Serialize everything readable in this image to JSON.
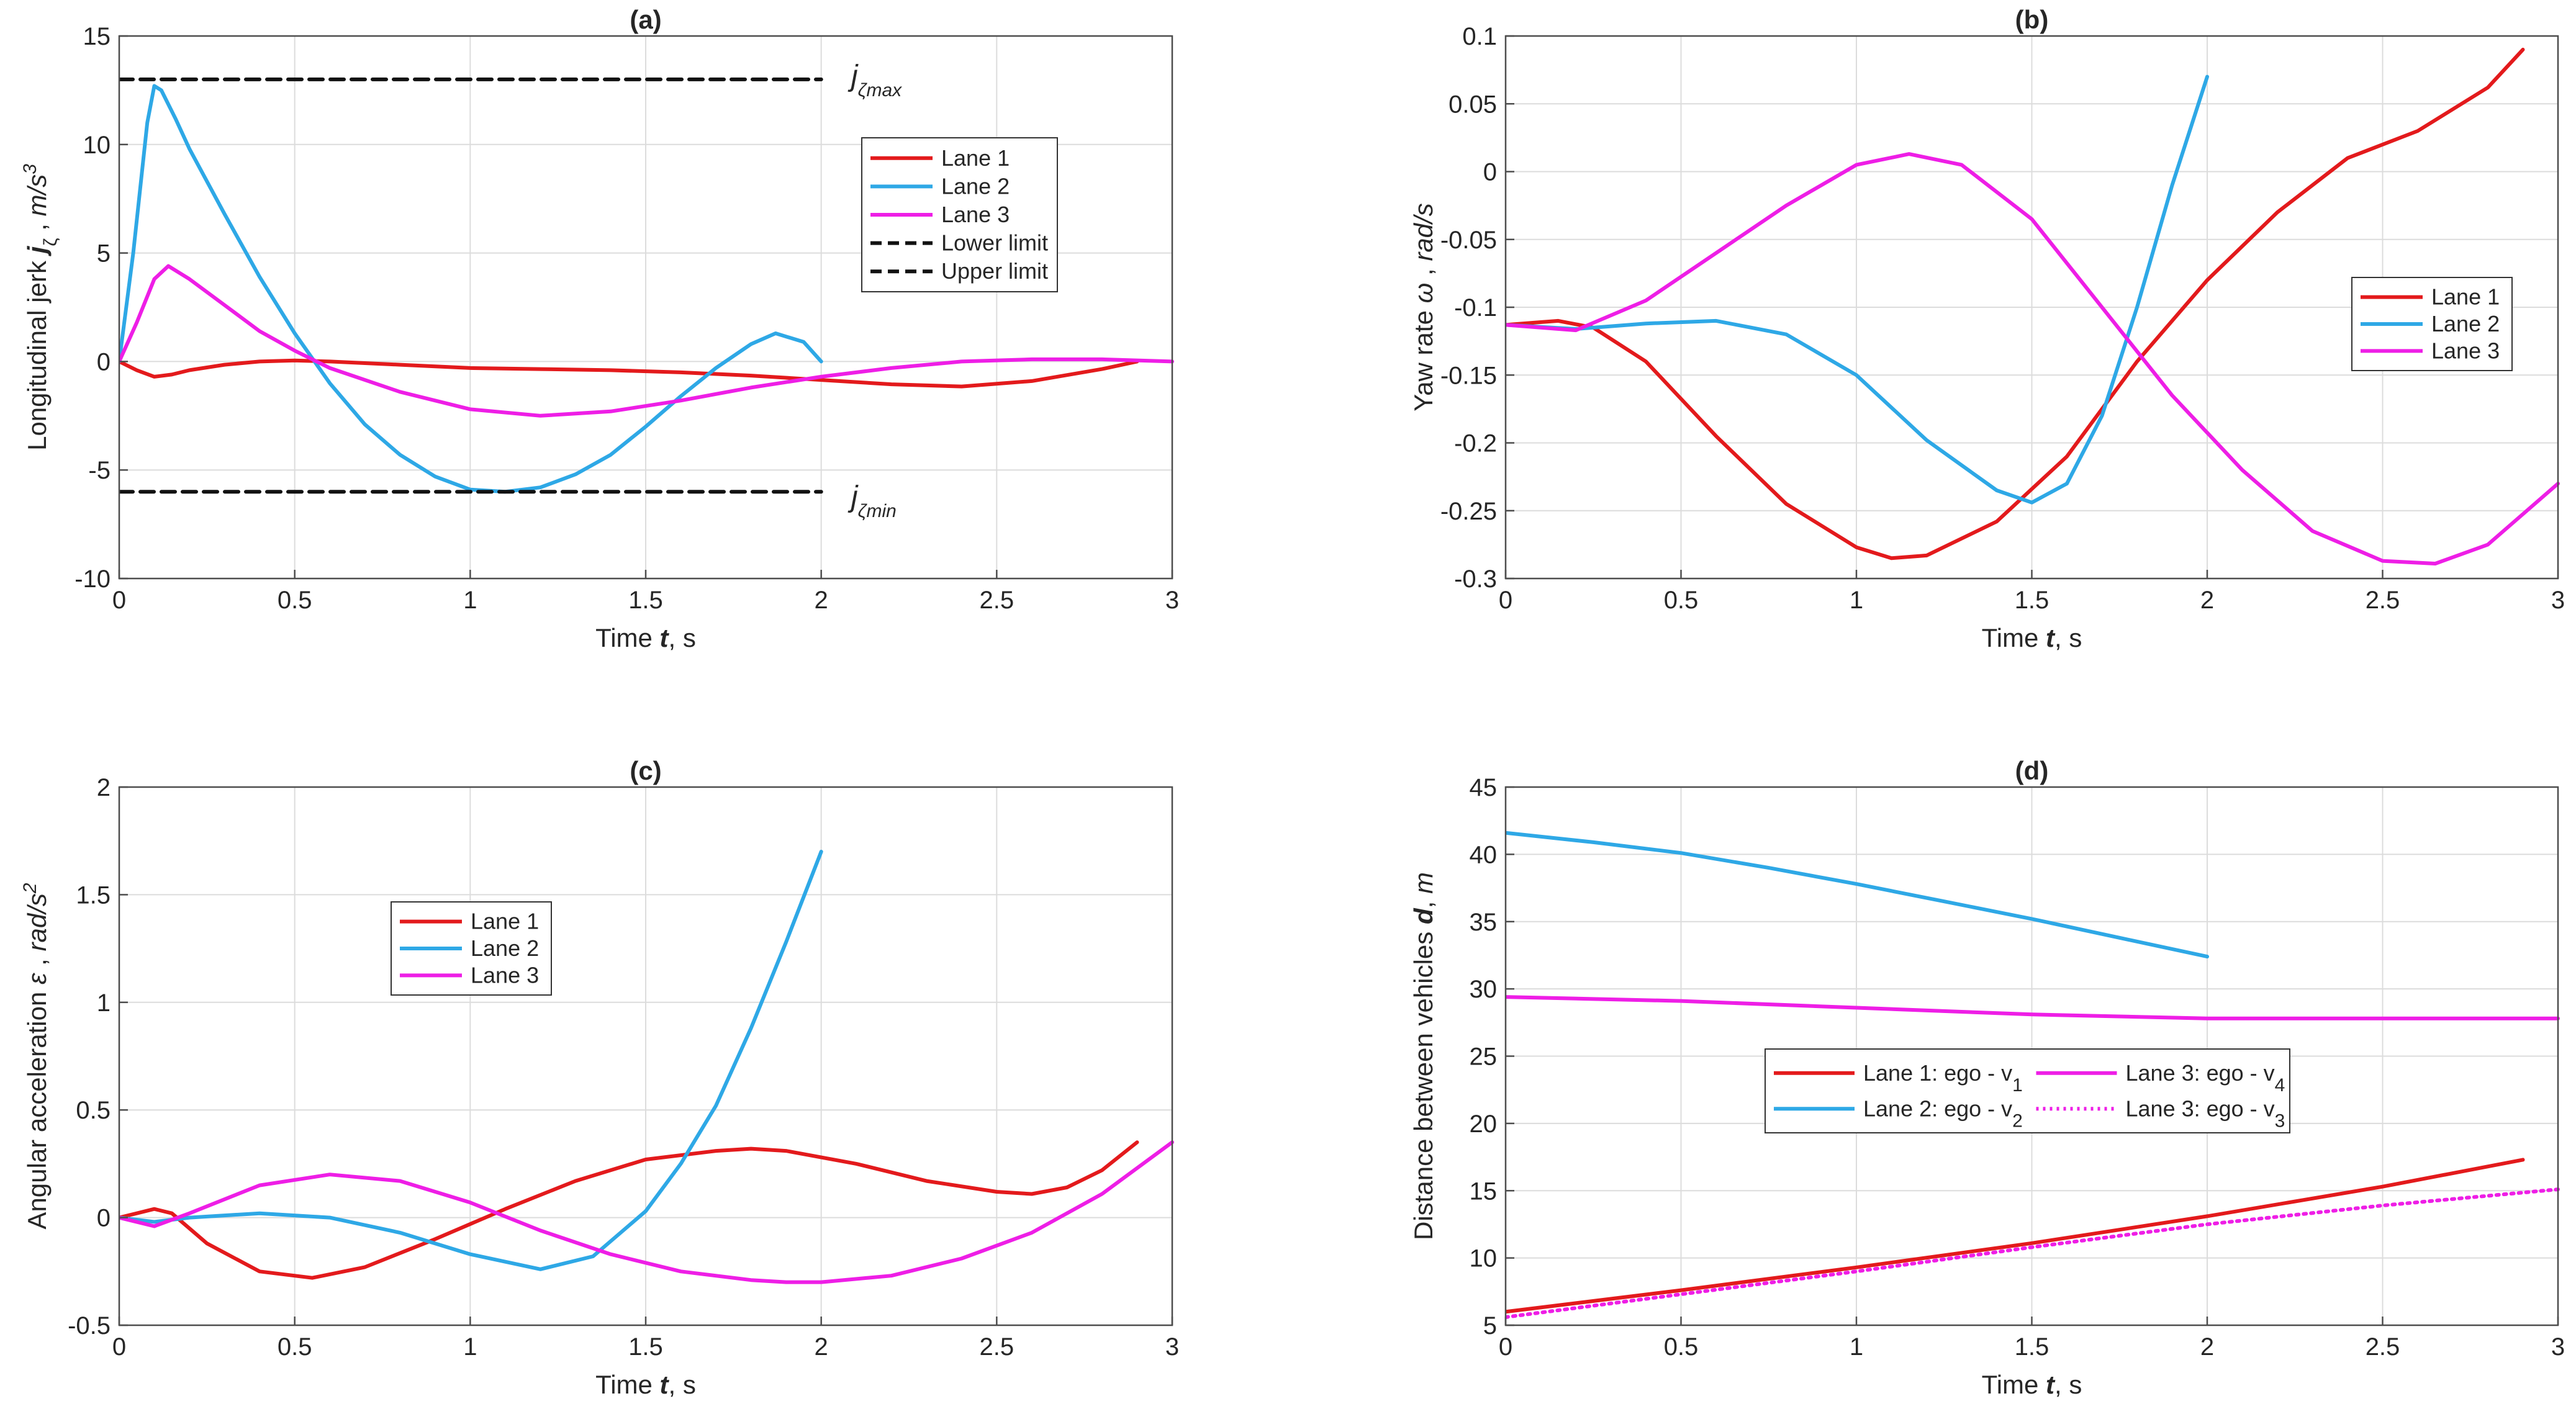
{
  "figure": {
    "layout": "2x2 grid"
  },
  "colors": {
    "lane1": "#e31a1c",
    "lane2": "#2ea8e6",
    "lane3": "#ee1ee6",
    "limit": "#111111"
  },
  "chart_data": [
    {
      "id": "a",
      "type": "line",
      "title": "(a)",
      "xlabel": "Time t, s",
      "ylabel": "Longitudinal jerk jζ , m/s³",
      "xlim": [
        0,
        3
      ],
      "ylim": [
        -10,
        15
      ],
      "xticks": [
        0,
        0.5,
        1,
        1.5,
        2,
        2.5,
        3
      ],
      "yticks": [
        -10,
        -5,
        0,
        5,
        10,
        15
      ],
      "grid": true,
      "legend_position": "right",
      "annotations": [
        {
          "text": "jζmax",
          "x": 2.05,
          "y": 13
        },
        {
          "text": "jζmin",
          "x": 2.05,
          "y": -6
        }
      ],
      "series": [
        {
          "name": "Lane 1",
          "color": "#e31a1c",
          "style": "solid",
          "x": [
            0,
            0.05,
            0.1,
            0.15,
            0.2,
            0.3,
            0.4,
            0.5,
            0.6,
            0.8,
            1.0,
            1.2,
            1.4,
            1.6,
            1.8,
            2.0,
            2.2,
            2.4,
            2.6,
            2.8,
            2.9
          ],
          "y": [
            0,
            -0.4,
            -0.7,
            -0.6,
            -0.4,
            -0.15,
            0,
            0.05,
            0,
            -0.15,
            -0.3,
            -0.35,
            -0.4,
            -0.5,
            -0.65,
            -0.85,
            -1.05,
            -1.15,
            -0.9,
            -0.35,
            0
          ]
        },
        {
          "name": "Lane 2",
          "color": "#2ea8e6",
          "style": "solid",
          "x": [
            0,
            0.04,
            0.08,
            0.1,
            0.12,
            0.16,
            0.2,
            0.3,
            0.4,
            0.5,
            0.6,
            0.7,
            0.8,
            0.9,
            1.0,
            1.1,
            1.2,
            1.3,
            1.4,
            1.5,
            1.6,
            1.7,
            1.8,
            1.87,
            1.95,
            2.0
          ],
          "y": [
            0,
            5,
            11,
            12.7,
            12.5,
            11.2,
            9.8,
            6.8,
            3.9,
            1.3,
            -1.0,
            -2.9,
            -4.3,
            -5.3,
            -5.9,
            -6.0,
            -5.8,
            -5.2,
            -4.3,
            -3.0,
            -1.6,
            -0.3,
            0.8,
            1.3,
            0.9,
            0
          ]
        },
        {
          "name": "Lane 3",
          "color": "#ee1ee6",
          "style": "solid",
          "x": [
            0,
            0.05,
            0.1,
            0.14,
            0.2,
            0.3,
            0.4,
            0.5,
            0.6,
            0.8,
            1.0,
            1.2,
            1.4,
            1.6,
            1.8,
            2.0,
            2.2,
            2.4,
            2.6,
            2.8,
            3.0
          ],
          "y": [
            0,
            1.8,
            3.8,
            4.4,
            3.8,
            2.6,
            1.4,
            0.5,
            -0.3,
            -1.4,
            -2.2,
            -2.5,
            -2.3,
            -1.8,
            -1.2,
            -0.7,
            -0.3,
            0,
            0.1,
            0.1,
            0
          ]
        },
        {
          "name": "Lower limit",
          "color": "#111111",
          "style": "dashed",
          "x": [
            0,
            2
          ],
          "y": [
            -6,
            -6
          ]
        },
        {
          "name": "Upper limit",
          "color": "#111111",
          "style": "dashed",
          "x": [
            0,
            2
          ],
          "y": [
            13,
            13
          ]
        }
      ]
    },
    {
      "id": "b",
      "type": "line",
      "title": "(b)",
      "xlabel": "Time t, s",
      "ylabel": "Yaw rate ω , rad/s",
      "xlim": [
        0,
        3
      ],
      "ylim": [
        -0.3,
        0.1
      ],
      "xticks": [
        0,
        0.5,
        1,
        1.5,
        2,
        2.5,
        3
      ],
      "yticks": [
        -0.3,
        -0.25,
        -0.2,
        -0.15,
        -0.1,
        -0.05,
        0,
        0.05,
        0.1
      ],
      "grid": true,
      "legend_position": "right",
      "annotations": [],
      "series": [
        {
          "name": "Lane 1",
          "color": "#e31a1c",
          "style": "solid",
          "x": [
            0,
            0.1,
            0.15,
            0.25,
            0.4,
            0.6,
            0.8,
            1.0,
            1.1,
            1.2,
            1.4,
            1.6,
            1.8,
            2.0,
            2.2,
            2.4,
            2.6,
            2.8,
            2.9
          ],
          "y": [
            -0.113,
            -0.111,
            -0.11,
            -0.115,
            -0.14,
            -0.195,
            -0.245,
            -0.277,
            -0.285,
            -0.283,
            -0.258,
            -0.21,
            -0.14,
            -0.08,
            -0.03,
            0.01,
            0.03,
            0.062,
            0.09
          ]
        },
        {
          "name": "Lane 2",
          "color": "#2ea8e6",
          "style": "solid",
          "x": [
            0,
            0.2,
            0.4,
            0.6,
            0.8,
            1.0,
            1.2,
            1.4,
            1.5,
            1.6,
            1.7,
            1.8,
            1.9,
            2.0
          ],
          "y": [
            -0.113,
            -0.116,
            -0.112,
            -0.11,
            -0.12,
            -0.15,
            -0.198,
            -0.235,
            -0.244,
            -0.23,
            -0.18,
            -0.1,
            -0.01,
            0.07
          ]
        },
        {
          "name": "Lane 3",
          "color": "#ee1ee6",
          "style": "solid",
          "x": [
            0,
            0.2,
            0.4,
            0.6,
            0.8,
            1.0,
            1.15,
            1.3,
            1.5,
            1.7,
            1.9,
            2.1,
            2.3,
            2.5,
            2.65,
            2.8,
            3.0
          ],
          "y": [
            -0.113,
            -0.117,
            -0.095,
            -0.06,
            -0.025,
            0.005,
            0.013,
            0.005,
            -0.035,
            -0.1,
            -0.165,
            -0.22,
            -0.265,
            -0.287,
            -0.289,
            -0.275,
            -0.23
          ]
        }
      ]
    },
    {
      "id": "c",
      "type": "line",
      "title": "(c)",
      "xlabel": "Time t, s",
      "ylabel": "Angular acceleration ε , rad/s²",
      "xlim": [
        0,
        3
      ],
      "ylim": [
        -0.5,
        2
      ],
      "xticks": [
        0,
        0.5,
        1,
        1.5,
        2,
        2.5,
        3
      ],
      "yticks": [
        -0.5,
        0,
        0.5,
        1,
        1.5,
        2
      ],
      "grid": true,
      "legend_position": "upper-left",
      "annotations": [],
      "series": [
        {
          "name": "Lane 1",
          "color": "#e31a1c",
          "style": "solid",
          "x": [
            0,
            0.05,
            0.1,
            0.15,
            0.25,
            0.4,
            0.55,
            0.7,
            0.9,
            1.1,
            1.3,
            1.5,
            1.7,
            1.8,
            1.9,
            2.1,
            2.3,
            2.5,
            2.6,
            2.7,
            2.8,
            2.9
          ],
          "y": [
            0,
            0.02,
            0.04,
            0.02,
            -0.12,
            -0.25,
            -0.28,
            -0.23,
            -0.1,
            0.04,
            0.17,
            0.27,
            0.31,
            0.32,
            0.31,
            0.25,
            0.17,
            0.12,
            0.11,
            0.14,
            0.22,
            0.35
          ]
        },
        {
          "name": "Lane 2",
          "color": "#2ea8e6",
          "style": "solid",
          "x": [
            0,
            0.1,
            0.2,
            0.4,
            0.6,
            0.8,
            1.0,
            1.2,
            1.35,
            1.5,
            1.6,
            1.7,
            1.8,
            1.9,
            2.0
          ],
          "y": [
            0,
            -0.02,
            0,
            0.02,
            0,
            -0.07,
            -0.17,
            -0.24,
            -0.18,
            0.03,
            0.25,
            0.52,
            0.88,
            1.28,
            1.7
          ]
        },
        {
          "name": "Lane 3",
          "color": "#ee1ee6",
          "style": "solid",
          "x": [
            0,
            0.1,
            0.2,
            0.4,
            0.6,
            0.8,
            1.0,
            1.2,
            1.4,
            1.6,
            1.8,
            1.9,
            2.0,
            2.2,
            2.4,
            2.6,
            2.8,
            3.0
          ],
          "y": [
            0,
            -0.04,
            0.02,
            0.15,
            0.2,
            0.17,
            0.07,
            -0.06,
            -0.17,
            -0.25,
            -0.29,
            -0.3,
            -0.3,
            -0.27,
            -0.19,
            -0.07,
            0.11,
            0.35
          ]
        }
      ]
    },
    {
      "id": "d",
      "type": "line",
      "title": "(d)",
      "xlabel": "Time t, s",
      "ylabel": "Distance between vehicles d, m",
      "xlim": [
        0,
        3
      ],
      "ylim": [
        5,
        45
      ],
      "xticks": [
        0,
        0.5,
        1,
        1.5,
        2,
        2.5,
        3
      ],
      "yticks": [
        5,
        10,
        15,
        20,
        25,
        30,
        35,
        40,
        45
      ],
      "grid": true,
      "legend_position": "center",
      "annotations": [],
      "series": [
        {
          "name": "Lane 1: ego - v₁",
          "color": "#e31a1c",
          "style": "solid",
          "x": [
            0,
            0.5,
            1.0,
            1.5,
            2.0,
            2.5,
            2.9
          ],
          "y": [
            6,
            7.6,
            9.3,
            11.1,
            13.1,
            15.3,
            17.3
          ]
        },
        {
          "name": "Lane 2: ego - v₂",
          "color": "#2ea8e6",
          "style": "solid",
          "x": [
            0,
            0.25,
            0.5,
            0.75,
            1.0,
            1.25,
            1.5,
            1.75,
            2.0
          ],
          "y": [
            41.6,
            40.9,
            40.1,
            39.0,
            37.8,
            36.5,
            35.2,
            33.8,
            32.4
          ]
        },
        {
          "name": "Lane 3: ego - v₄",
          "color": "#ee1ee6",
          "style": "solid",
          "x": [
            0,
            0.5,
            1.0,
            1.5,
            2.0,
            2.5,
            3.0
          ],
          "y": [
            29.4,
            29.1,
            28.6,
            28.1,
            27.8,
            27.8,
            27.8
          ]
        },
        {
          "name": "Lane 3: ego - v₃",
          "color": "#ee1ee6",
          "style": "dotted",
          "x": [
            0,
            0.5,
            1.0,
            1.5,
            2.0,
            2.5,
            3.0
          ],
          "y": [
            5.6,
            7.3,
            9.0,
            10.8,
            12.5,
            13.9,
            15.1
          ]
        }
      ]
    }
  ]
}
